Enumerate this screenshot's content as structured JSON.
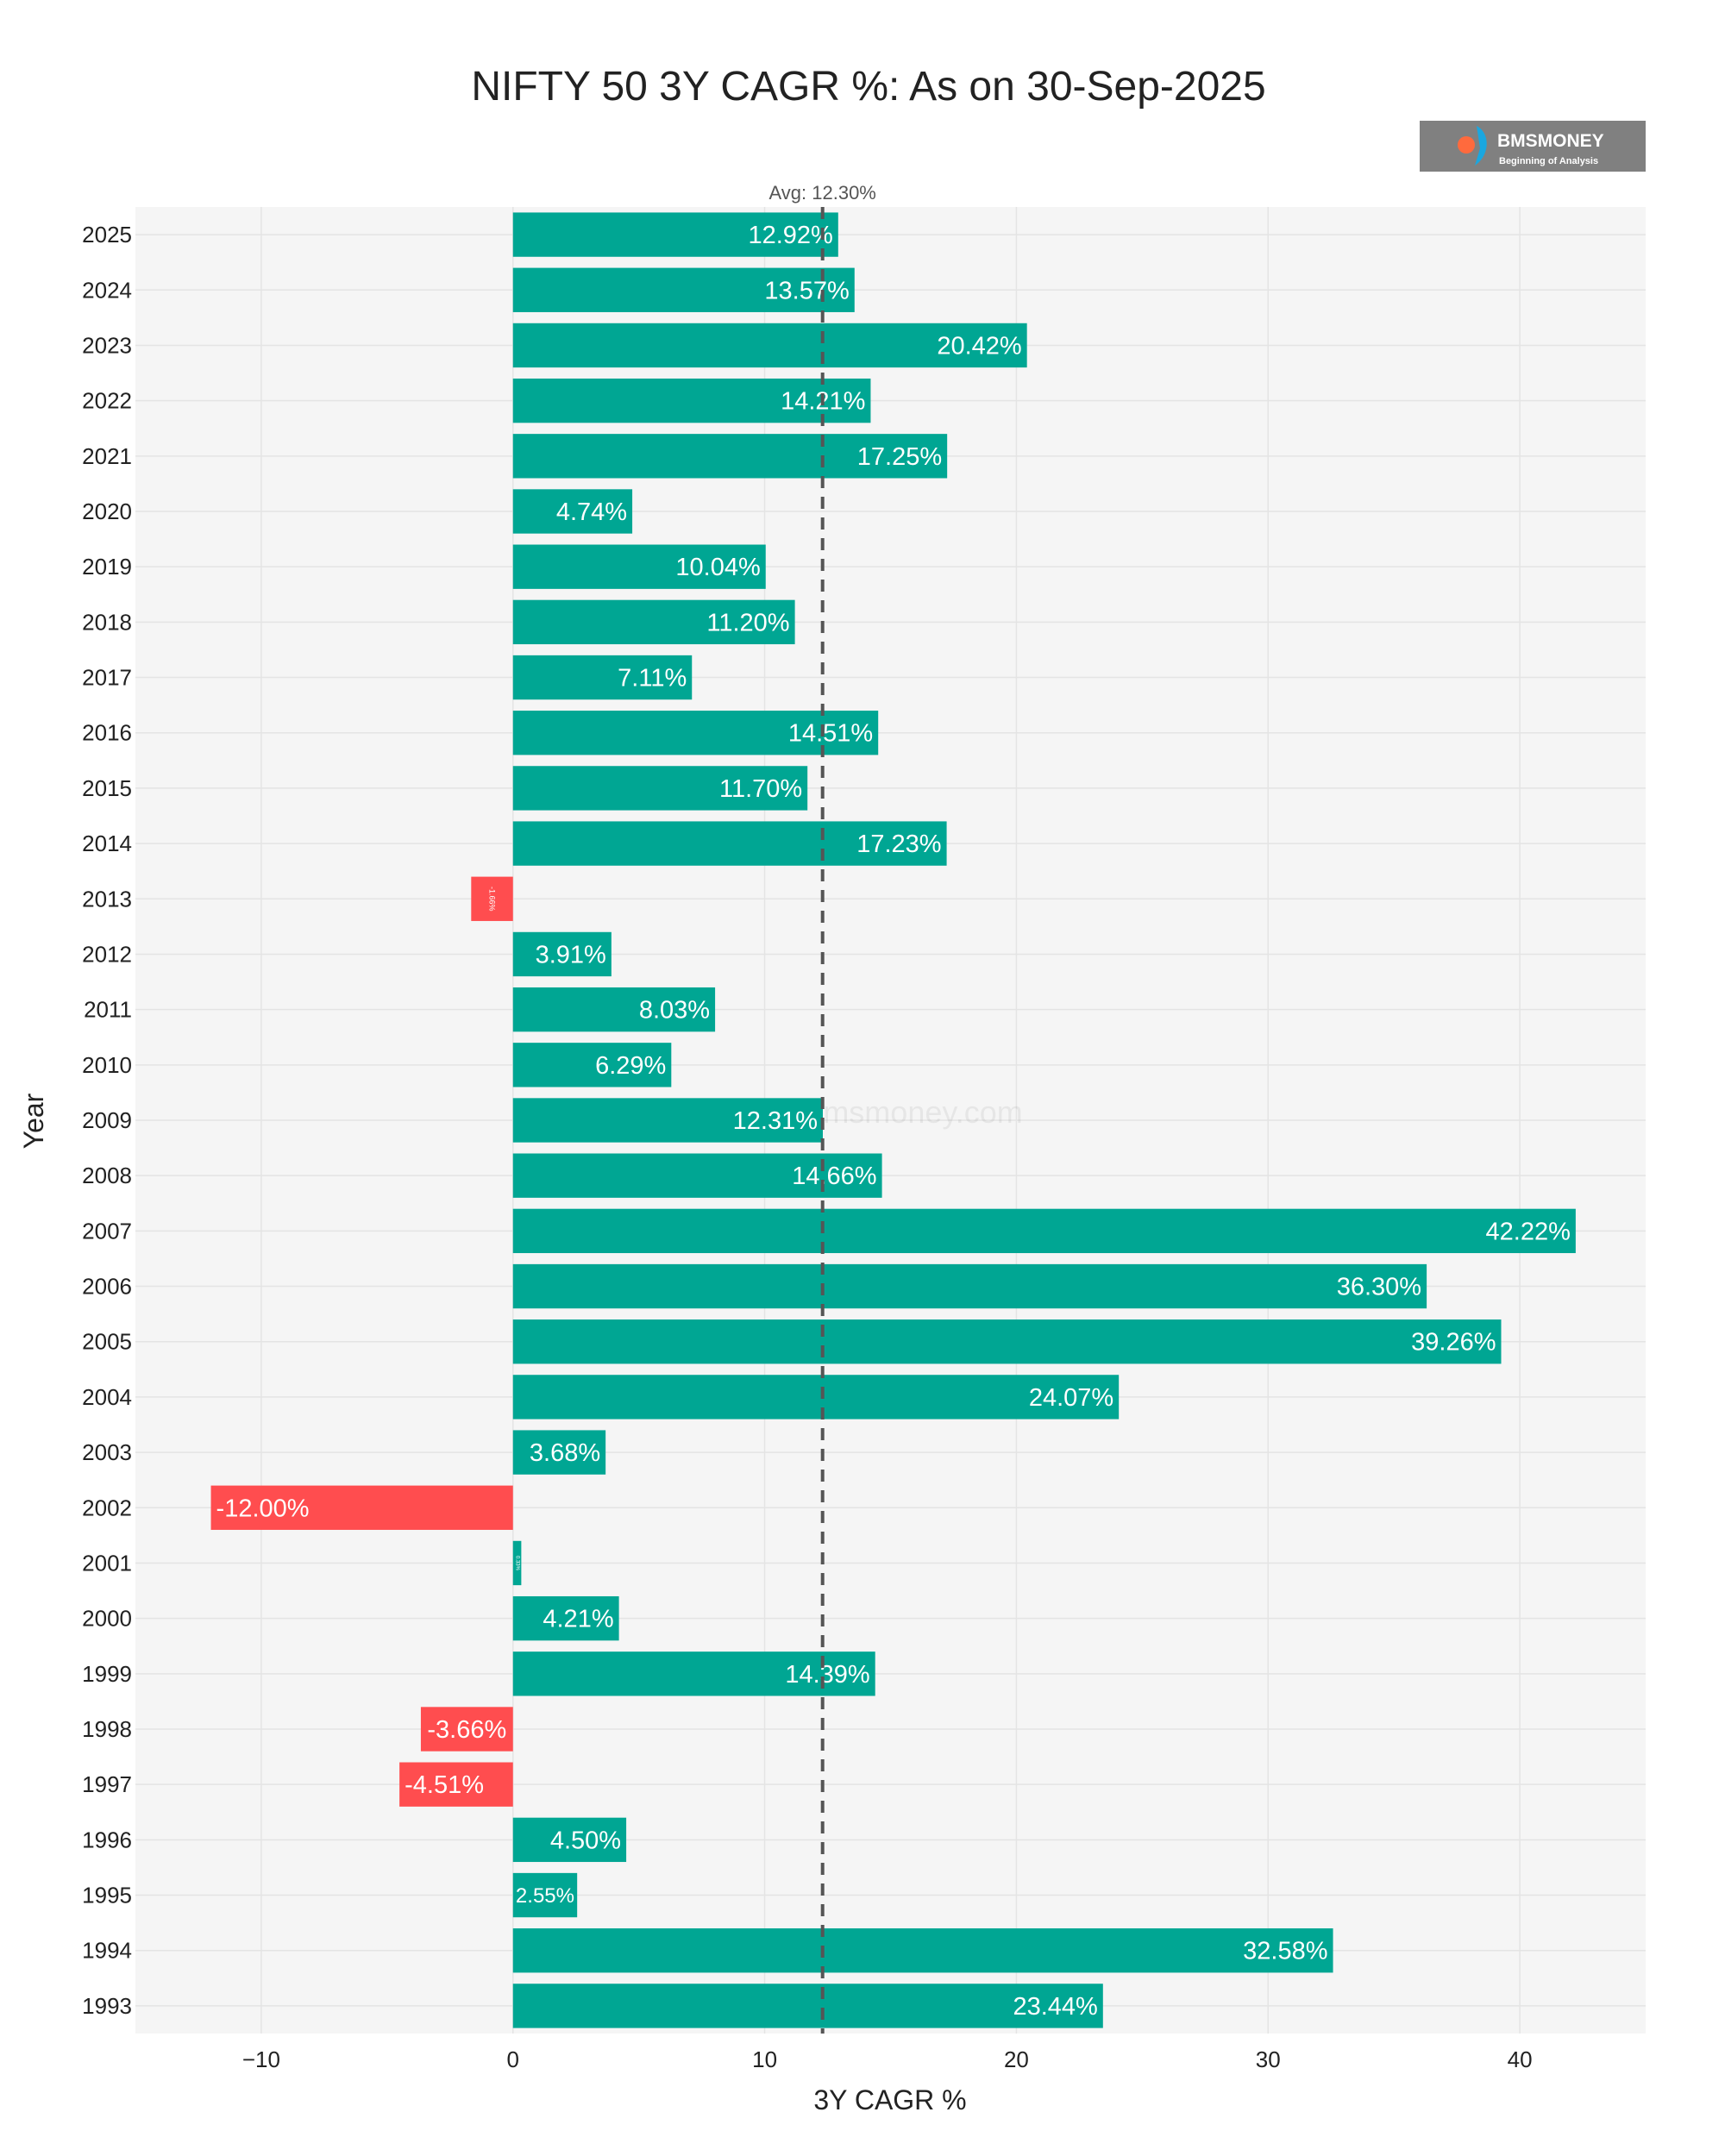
{
  "chart_data": {
    "type": "bar",
    "orientation": "horizontal",
    "title": "NIFTY 50 3Y CAGR %: As on 30-Sep-2025",
    "xlabel": "3Y CAGR %",
    "ylabel": "Year",
    "xlim": [
      -15,
      45
    ],
    "x_ticks": [
      -10,
      0,
      10,
      20,
      30,
      40
    ],
    "x_tick_labels": [
      "−10",
      "0",
      "10",
      "20",
      "30",
      "40"
    ],
    "grid": true,
    "categories": [
      "2025",
      "2024",
      "2023",
      "2022",
      "2021",
      "2020",
      "2019",
      "2018",
      "2017",
      "2016",
      "2015",
      "2014",
      "2013",
      "2012",
      "2011",
      "2010",
      "2009",
      "2008",
      "2007",
      "2006",
      "2005",
      "2004",
      "2003",
      "2002",
      "2001",
      "2000",
      "1999",
      "1998",
      "1997",
      "1996",
      "1995",
      "1994",
      "1993"
    ],
    "values": [
      12.92,
      13.57,
      20.42,
      14.21,
      17.25,
      4.74,
      10.04,
      11.2,
      7.11,
      14.51,
      11.7,
      17.23,
      -1.66,
      3.91,
      8.03,
      6.29,
      12.31,
      14.66,
      42.22,
      36.3,
      39.26,
      24.07,
      3.68,
      -12.0,
      0.33,
      4.21,
      14.39,
      -3.66,
      -4.51,
      4.5,
      2.55,
      32.58,
      23.44
    ],
    "labels": [
      "12.92%",
      "13.57%",
      "20.42%",
      "14.21%",
      "17.25%",
      "4.74%",
      "10.04%",
      "11.20%",
      "7.11%",
      "14.51%",
      "11.70%",
      "17.23%",
      "-1.66%",
      "3.91%",
      "8.03%",
      "6.29%",
      "12.31%",
      "14.66%",
      "42.22%",
      "36.30%",
      "39.26%",
      "24.07%",
      "3.68%",
      "-12.00%",
      "0.33%",
      "4.21%",
      "14.39%",
      "-3.66%",
      "-4.51%",
      "4.50%",
      "2.55%",
      "32.58%",
      "23.44%"
    ],
    "average": {
      "value": 12.3,
      "label": "Avg: 12.30%"
    },
    "colors": {
      "positive": "#00a693",
      "negative": "#ff4d4f",
      "plot_bg": "#f5f5f5",
      "grid": "#e4e4e4",
      "avg_line": "#555555"
    }
  },
  "branding": {
    "name": "BMSMONEY",
    "tagline": "Beginning of Analysis",
    "watermark": "bmsmoney.com",
    "colors": {
      "box": "#808080",
      "text": "#ffffff",
      "icon_orange": "#ff6a3d",
      "icon_blue": "#1aa7e0"
    }
  }
}
